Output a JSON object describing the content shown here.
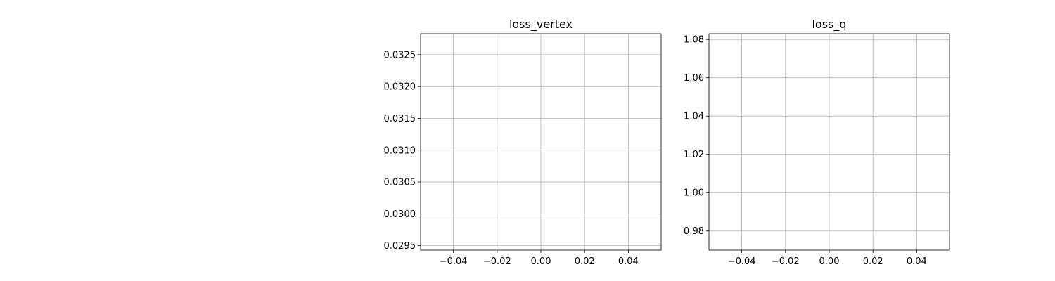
{
  "chart_data": [
    {
      "type": "line",
      "title": "loss_vertex",
      "xlabel": "",
      "ylabel": "",
      "xlim": [
        -0.055,
        0.055
      ],
      "ylim": [
        0.02943,
        0.03283
      ],
      "xticks": [
        -0.04,
        -0.02,
        0.0,
        0.02,
        0.04
      ],
      "xtick_labels": [
        "−0.04",
        "−0.02",
        "0.00",
        "0.02",
        "0.04"
      ],
      "yticks": [
        0.0295,
        0.03,
        0.0305,
        0.031,
        0.0315,
        0.032,
        0.0325
      ],
      "ytick_labels": [
        "0.0295",
        "0.0300",
        "0.0305",
        "0.0310",
        "0.0315",
        "0.0320",
        "0.0325"
      ],
      "grid": true,
      "series": [],
      "colors": {
        "grid": "#b0b0b0",
        "axes": "#000000"
      }
    },
    {
      "type": "line",
      "title": "loss_q",
      "xlabel": "",
      "ylabel": "",
      "xlim": [
        -0.055,
        0.055
      ],
      "ylim": [
        0.97,
        1.083
      ],
      "xticks": [
        -0.04,
        -0.02,
        0.0,
        0.02,
        0.04
      ],
      "xtick_labels": [
        "−0.04",
        "−0.02",
        "0.00",
        "0.02",
        "0.04"
      ],
      "yticks": [
        0.98,
        1.0,
        1.02,
        1.04,
        1.06,
        1.08
      ],
      "ytick_labels": [
        "0.98",
        "1.00",
        "1.02",
        "1.04",
        "1.06",
        "1.08"
      ],
      "grid": true,
      "series": [],
      "colors": {
        "grid": "#b0b0b0",
        "axes": "#000000"
      }
    }
  ]
}
